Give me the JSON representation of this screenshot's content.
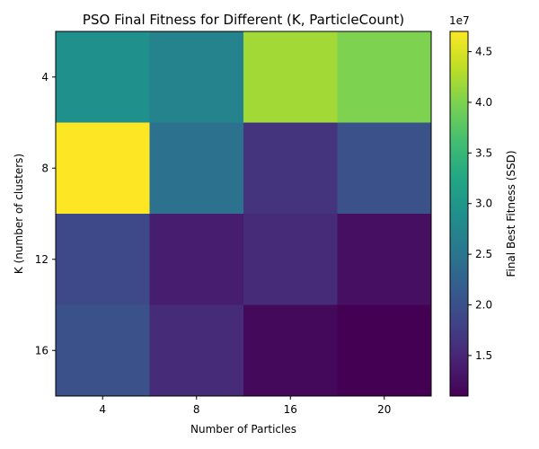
{
  "chart_data": {
    "type": "heatmap",
    "title": "PSO Final Fitness for Different (K, ParticleCount)",
    "xlabel": "Number of Particles",
    "ylabel": "K (number of clusters)",
    "x_categories": [
      "4",
      "8",
      "16",
      "20"
    ],
    "y_categories": [
      "4",
      "8",
      "12",
      "16"
    ],
    "values": [
      [
        29000000,
        27000000,
        42000000,
        40000000
      ],
      [
        47000000,
        24500000,
        16500000,
        20000000
      ],
      [
        19000000,
        14000000,
        15500000,
        12500000
      ],
      [
        20000000,
        15500000,
        11800000,
        11000000
      ]
    ],
    "colormap": "viridis",
    "vmin": 11000000,
    "vmax": 47000000,
    "colorbar": {
      "label": "Final Best Fitness (SSD)",
      "multiplier": "1e7",
      "ticks": [
        1.5,
        2.0,
        2.5,
        3.0,
        3.5,
        4.0,
        4.5
      ],
      "tick_labels": [
        "1.5",
        "2.0",
        "2.5",
        "3.0",
        "3.5",
        "4.0",
        "4.5"
      ]
    },
    "grid": false
  }
}
